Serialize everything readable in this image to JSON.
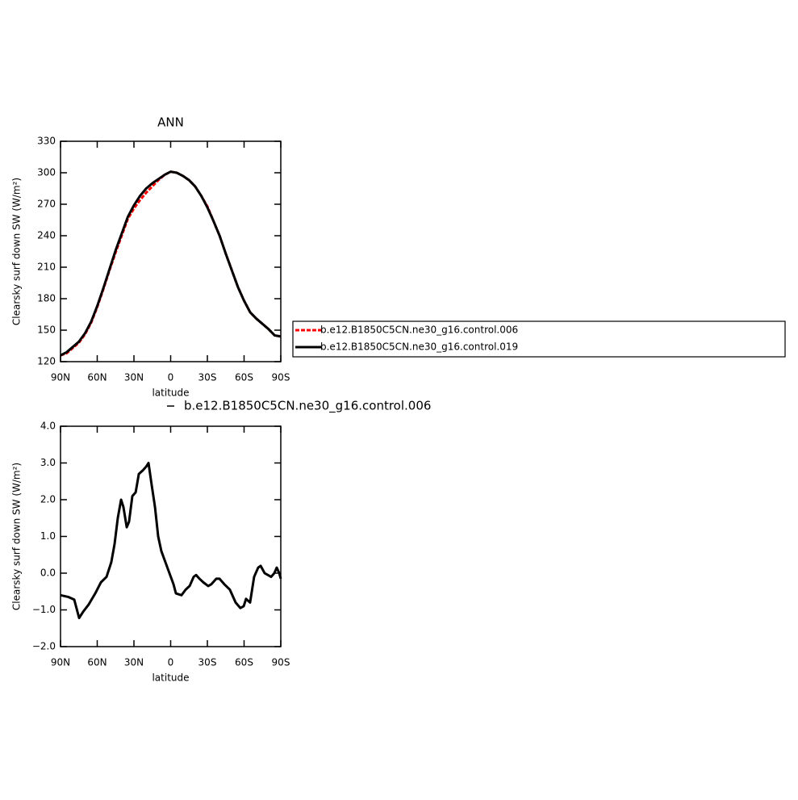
{
  "chart_data": [
    {
      "type": "line",
      "title": "ANN",
      "xlabel": "latitude",
      "ylabel": "Clearsky surf down SW (W/m²)",
      "xlim": [
        90,
        -90
      ],
      "xticks": [
        {
          "value": 90,
          "label": "90N"
        },
        {
          "value": 60,
          "label": "60N"
        },
        {
          "value": 30,
          "label": "30N"
        },
        0,
        {
          "value": -30,
          "label": "30S"
        },
        {
          "value": -60,
          "label": "60S"
        },
        {
          "value": -90,
          "label": "90S"
        }
      ],
      "ylim": [
        120,
        330
      ],
      "yticks": [
        120,
        150,
        180,
        210,
        240,
        270,
        300,
        330
      ],
      "legend": "right",
      "x": [
        90,
        85,
        80,
        75,
        70,
        65,
        60,
        55,
        50,
        45,
        40,
        35,
        30,
        25,
        20,
        15,
        10,
        5,
        0,
        -5,
        -10,
        -15,
        -20,
        -25,
        -30,
        -35,
        -40,
        -45,
        -50,
        -55,
        -60,
        -65,
        -70,
        -75,
        -80,
        -85,
        -90
      ],
      "series": [
        {
          "name": "b.e12.B1850C5CN.ne30_g16.control.006",
          "color": "#ff0000",
          "linestyle": "dashed",
          "values": [
            126,
            128,
            133,
            138,
            146,
            157,
            172,
            189,
            207,
            224,
            240,
            256,
            266,
            274,
            281,
            287,
            293,
            298,
            301,
            300,
            297,
            293,
            287,
            278,
            268,
            254,
            240,
            223,
            207,
            191,
            178,
            167,
            161,
            156,
            151,
            145,
            144
          ]
        },
        {
          "name": "b.e12.B1850C5CN.ne30_g16.control.019",
          "color": "#000000",
          "linestyle": "solid",
          "values": [
            126,
            129,
            134,
            139,
            147,
            158,
            173,
            190,
            208,
            226,
            242,
            258,
            269,
            278,
            285,
            290,
            294,
            298,
            301,
            300,
            297,
            293,
            287,
            278,
            267,
            254,
            240,
            223,
            207,
            191,
            178,
            167,
            161,
            156,
            151,
            145,
            144
          ]
        }
      ]
    },
    {
      "type": "line",
      "subtitle": "b.e12.B1850C5CN.ne30_g16.control.006",
      "xlabel": "latitude",
      "ylabel": "Clearsky surf down SW (W/m²)",
      "xlim": [
        90,
        -90
      ],
      "xticks": [
        {
          "value": 90,
          "label": "90N"
        },
        {
          "value": 60,
          "label": "60N"
        },
        {
          "value": 30,
          "label": "30N"
        },
        0,
        {
          "value": -30,
          "label": "30S"
        },
        {
          "value": -60,
          "label": "60S"
        },
        {
          "value": -90,
          "label": "90S"
        }
      ],
      "ylim": [
        -2,
        4
      ],
      "yticks": [
        {
          "value": -2,
          "label": "−2.0"
        },
        {
          "value": -1,
          "label": "−1.0"
        },
        {
          "value": 0,
          "label": "0.0"
        },
        {
          "value": 1,
          "label": "1.0"
        },
        {
          "value": 2,
          "label": "2.0"
        },
        {
          "value": 3,
          "label": "3.0"
        },
        {
          "value": 4,
          "label": "4.0"
        }
      ],
      "x": [
        90,
        83.4,
        78.8,
        74.8,
        71.5,
        66.9,
        61.6,
        57.0,
        52.4,
        48.5,
        45.8,
        43.2,
        40.5,
        38.6,
        35.9,
        34.0,
        31.3,
        28.6,
        26.0,
        22.7,
        20.0,
        18.1,
        15.5,
        12.8,
        10.2,
        7.6,
        4.3,
        1.0,
        -2.3,
        -4.3,
        -8.9,
        -12.2,
        -15.5,
        -18.8,
        -20.8,
        -23.5,
        -26.7,
        -30.7,
        -33.3,
        -37.3,
        -39.9,
        -43.8,
        -48.4,
        -53.1,
        -57.0,
        -59.7,
        -61.6,
        -64.9,
        -68.2,
        -71.5,
        -73.5,
        -76.8,
        -79.5,
        -82.1,
        -84.7,
        -86.7,
        -88.7,
        -90
      ],
      "series": [
        {
          "color": "#000000",
          "values": [
            -0.6,
            -0.65,
            -0.72,
            -1.22,
            -1.05,
            -0.85,
            -0.55,
            -0.25,
            -0.1,
            0.3,
            0.8,
            1.5,
            2.0,
            1.8,
            1.25,
            1.4,
            2.1,
            2.2,
            2.7,
            2.8,
            2.9,
            3.0,
            2.4,
            1.8,
            1.0,
            0.6,
            0.3,
            0.0,
            -0.3,
            -0.55,
            -0.6,
            -0.45,
            -0.35,
            -0.1,
            -0.05,
            -0.15,
            -0.25,
            -0.35,
            -0.3,
            -0.15,
            -0.15,
            -0.3,
            -0.45,
            -0.8,
            -0.95,
            -0.9,
            -0.7,
            -0.8,
            -0.1,
            0.15,
            0.2,
            0.0,
            -0.05,
            -0.1,
            0.0,
            0.15,
            0.0,
            -0.15
          ]
        }
      ]
    }
  ]
}
